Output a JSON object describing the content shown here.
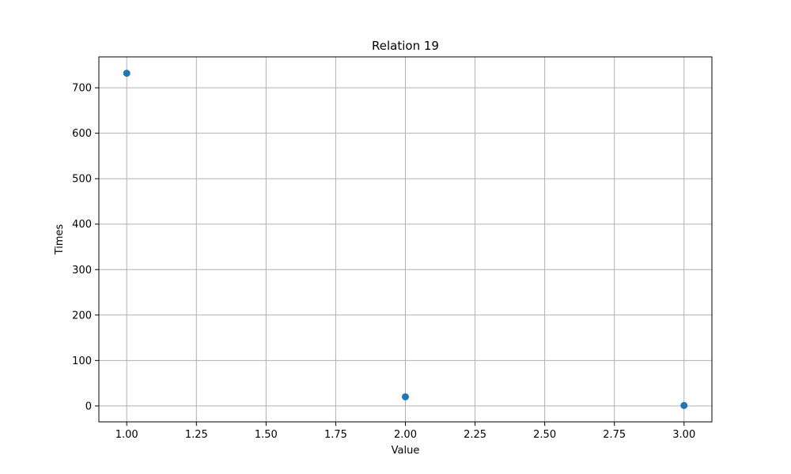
{
  "chart_data": {
    "type": "scatter",
    "title": "Relation 19",
    "xlabel": "Value",
    "ylabel": "Times",
    "x": [
      1,
      2,
      3
    ],
    "y": [
      732,
      20,
      1
    ],
    "xlim": [
      0.9,
      3.1
    ],
    "ylim": [
      -35,
      768
    ],
    "xticks": [
      1.0,
      1.25,
      1.5,
      1.75,
      2.0,
      2.25,
      2.5,
      2.75,
      3.0
    ],
    "xtick_labels": [
      "1.00",
      "1.25",
      "1.50",
      "1.75",
      "2.00",
      "2.25",
      "2.50",
      "2.75",
      "3.00"
    ],
    "yticks": [
      0,
      100,
      200,
      300,
      400,
      500,
      600,
      700
    ],
    "ytick_labels": [
      "0",
      "100",
      "200",
      "300",
      "400",
      "500",
      "600",
      "700"
    ],
    "grid": true,
    "marker_color": "#1f77b4"
  }
}
